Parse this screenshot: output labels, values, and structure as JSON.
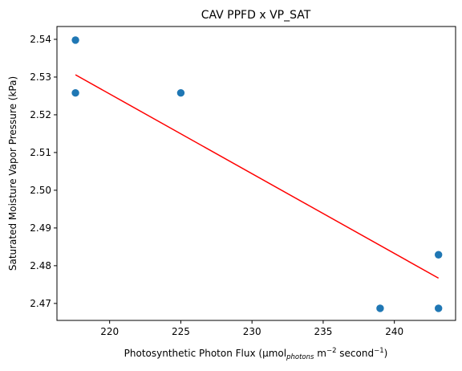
{
  "chart_data": {
    "type": "scatter",
    "title": "CAV PPFD x VP_SAT",
    "xlabel": {
      "main": "Photosynthetic Photon Flux (µmol",
      "sub": "photons",
      "mid": " m",
      "sup1": "−2",
      "end": " second",
      "sup2": "−1",
      "close": ")"
    },
    "ylabel": "Saturated Moisture Vapor Pressure (kPa)",
    "xlim": [
      216.3,
      244.3
    ],
    "ylim": [
      2.4655,
      2.5434
    ],
    "xticks": [
      220,
      225,
      230,
      235,
      240
    ],
    "xtick_labels": [
      "220",
      "225",
      "230",
      "235",
      "240"
    ],
    "yticks": [
      2.47,
      2.48,
      2.49,
      2.5,
      2.51,
      2.52,
      2.53,
      2.54
    ],
    "ytick_labels": [
      "2.47",
      "2.48",
      "2.49",
      "2.50",
      "2.51",
      "2.52",
      "2.53",
      "2.54"
    ],
    "grid": false,
    "series": [
      {
        "kind": "points",
        "color": "#1f77b4",
        "x": [
          217.6,
          217.6,
          225.0,
          239.0,
          243.1,
          243.1
        ],
        "y": [
          2.5398,
          2.5258,
          2.5258,
          2.4687,
          2.4829,
          2.4687
        ]
      },
      {
        "kind": "fit-line",
        "color": "#ff0000",
        "x": [
          217.6,
          243.1
        ],
        "y": [
          2.5306,
          2.4767
        ]
      }
    ]
  }
}
